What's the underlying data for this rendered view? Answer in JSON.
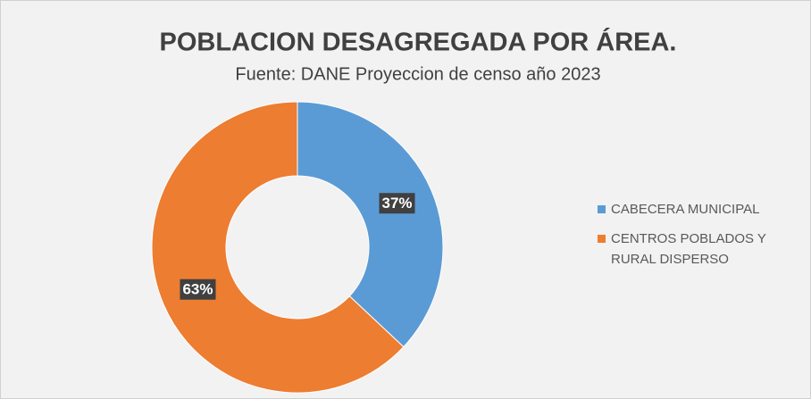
{
  "chart_data": {
    "type": "doughnut",
    "title": "POBLACION DESAGREGADA POR ÁREA.",
    "subtitle": "Fuente: DANE Proyeccion de censo año 2023",
    "categories": [
      "CABECERA MUNICIPAL",
      "CENTROS POBLADOS Y RURAL DISPERSO"
    ],
    "values": [
      37,
      63
    ],
    "value_labels": [
      "37%",
      "63%"
    ],
    "colors": [
      "#5b9bd5",
      "#ed7d31"
    ],
    "legend": "right"
  }
}
